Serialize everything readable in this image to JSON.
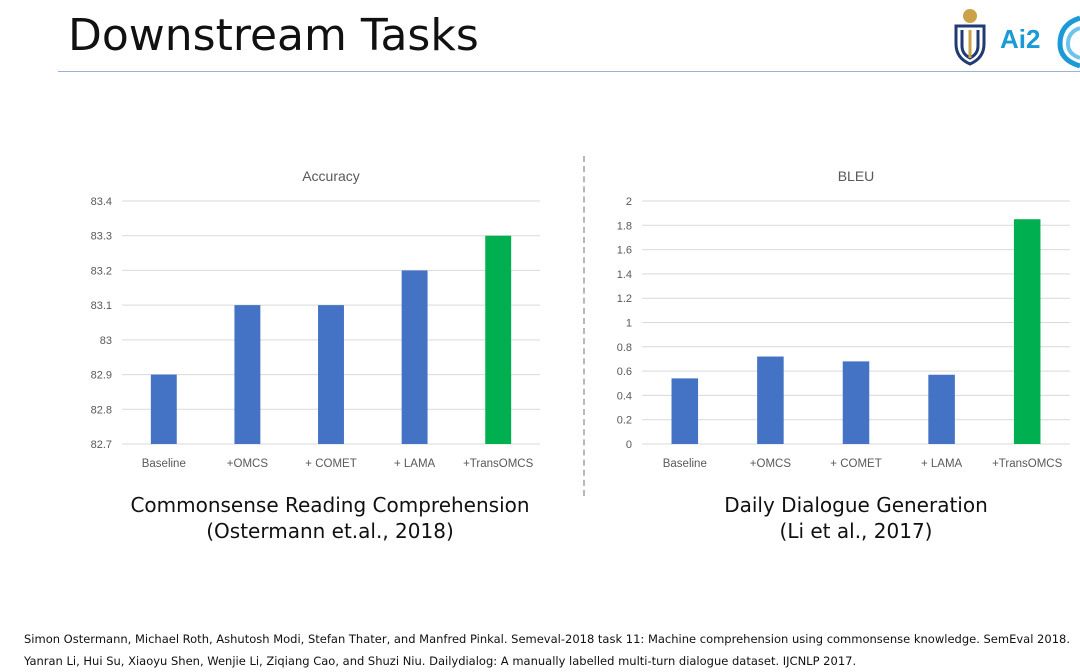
{
  "slide": {
    "title": "Downstream Tasks",
    "logo_text": "Ai2"
  },
  "captions": [
    {
      "line1": "Commonsense Reading Comprehension",
      "line2": "(Ostermann et.al., 2018)"
    },
    {
      "line1": "Daily Dialogue Generation",
      "line2": "(Li et al., 2017)"
    }
  ],
  "references": [
    "Simon Ostermann, Michael Roth, Ashutosh Modi, Stefan Thater, and Manfred Pinkal. Semeval-2018 task 11: Machine comprehension using commonsense knowledge. SemEval 2018.",
    "Yanran Li, Hui Su, Xiaoyu Shen, Wenjie Li, Ziqiang Cao, and Shuzi Niu. Dailydialog: A manually labelled multi-turn dialogue dataset. IJCNLP 2017."
  ],
  "colors": {
    "bar": "#4472c4",
    "highlight": "#00b050",
    "grid": "#d9d9d9",
    "tick_text": "#595959",
    "title_text": "#595959",
    "accent_rule": "#9bb1d6"
  },
  "chart_data": [
    {
      "type": "bar",
      "title": "Accuracy",
      "categories": [
        "Baseline",
        "+OMCS",
        "+ COMET",
        "+ LAMA",
        "+TransOMCS"
      ],
      "values": [
        82.9,
        83.1,
        83.1,
        83.2,
        83.3
      ],
      "highlight_index": 4,
      "ylim": [
        82.7,
        83.4
      ],
      "yticks": [
        "82.7",
        "82.8",
        "82.9",
        "83",
        "83.1",
        "83.2",
        "83.3",
        "83.4"
      ],
      "grid": true,
      "legend": "none"
    },
    {
      "type": "bar",
      "title": "BLEU",
      "categories": [
        "Baseline",
        "+OMCS",
        "+ COMET",
        "+ LAMA",
        "+TransOMCS"
      ],
      "values": [
        0.54,
        0.72,
        0.68,
        0.57,
        1.85
      ],
      "highlight_index": 4,
      "ylim": [
        0,
        2
      ],
      "yticks": [
        "0",
        "0.2",
        "0.4",
        "0.6",
        "0.8",
        "1",
        "1.2",
        "1.4",
        "1.6",
        "1.8",
        "2"
      ],
      "grid": true,
      "legend": "none"
    }
  ]
}
